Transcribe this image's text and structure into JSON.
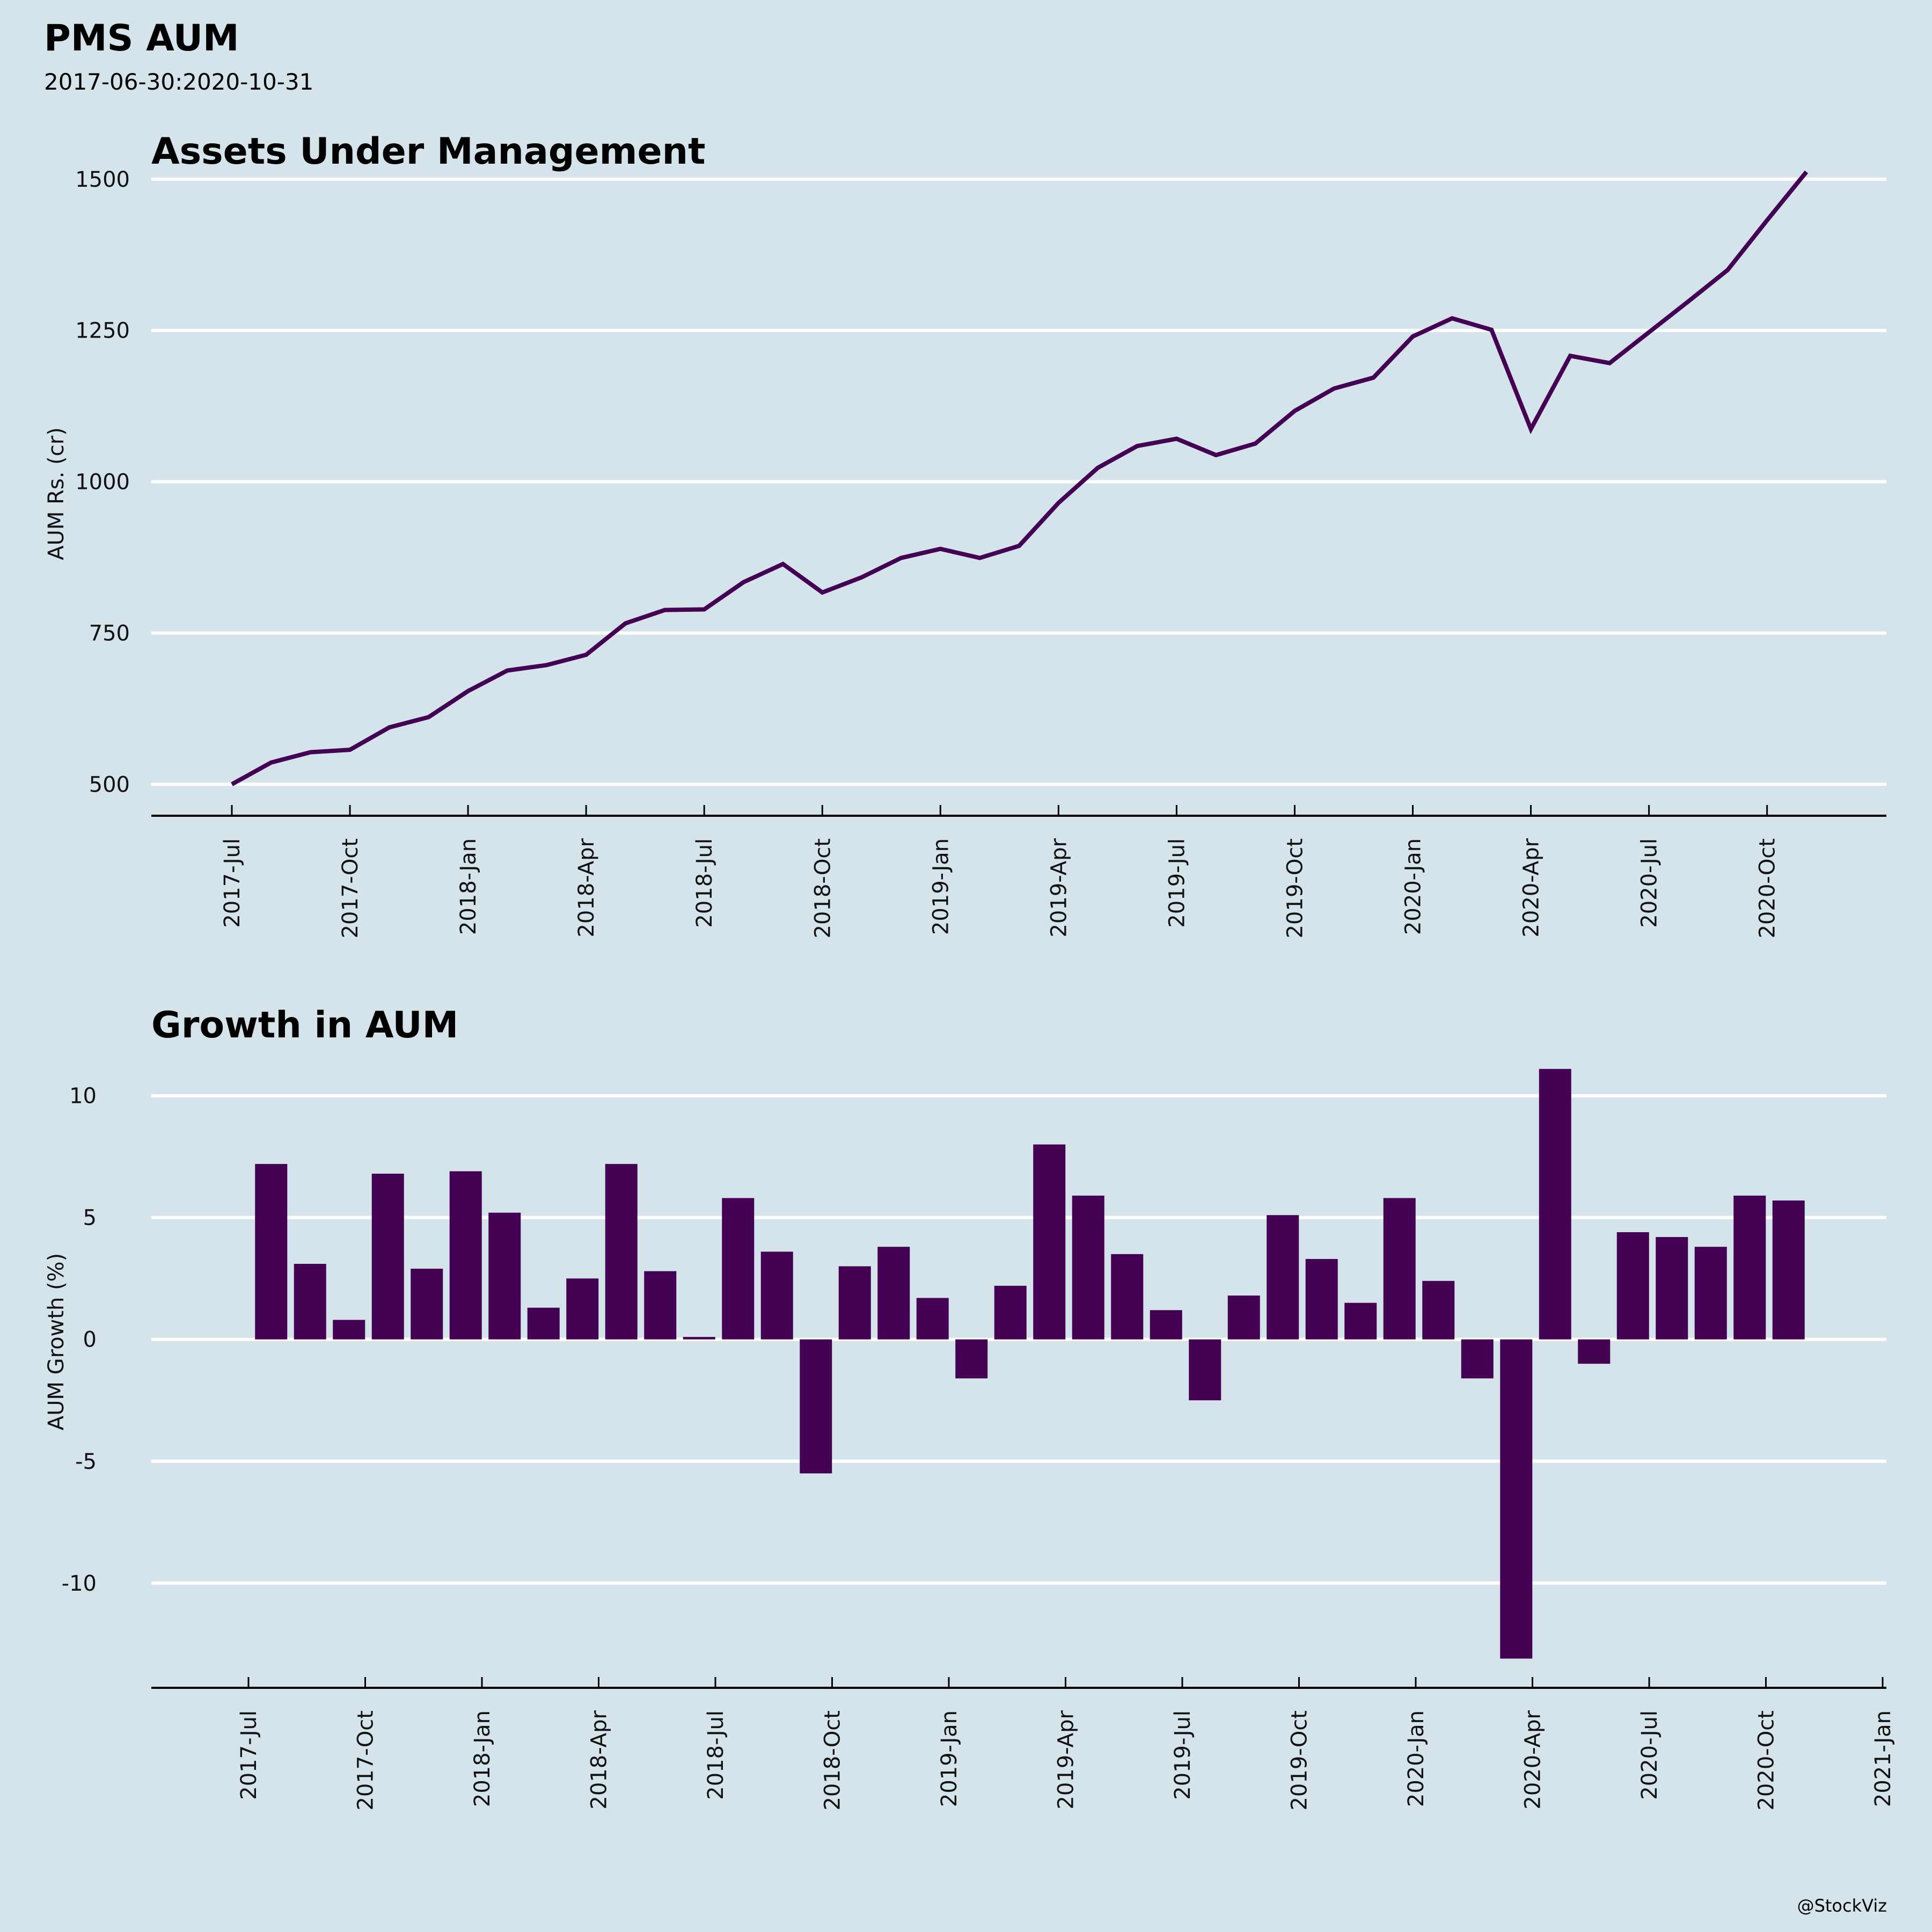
{
  "header": {
    "title": "PMS AUM",
    "subtitle": "2017-06-30:2020-10-31"
  },
  "footer": {
    "credit": "@StockViz"
  },
  "colors": {
    "background": "#d5e4eb",
    "series": "#440154",
    "grid": "#ffffff",
    "axis": "#000000"
  },
  "chart_data": [
    {
      "type": "line",
      "title": "Assets Under Management",
      "xlabel": "",
      "ylabel": "AUM Rs. (cr)",
      "ylim": [
        448,
        1530
      ],
      "yticks": [
        500,
        750,
        1000,
        1250,
        1500
      ],
      "grid": "horizontal",
      "legend": "none",
      "xtick_labels": [
        "2017-Jul",
        "2017-Oct",
        "2018-Jan",
        "2018-Apr",
        "2018-Jul",
        "2018-Oct",
        "2019-Jan",
        "2019-Apr",
        "2019-Jul",
        "2019-Oct",
        "2020-Jan",
        "2020-Apr",
        "2020-Jul",
        "2020-Oct"
      ],
      "x": [
        "2017-06",
        "2017-07",
        "2017-08",
        "2017-09",
        "2017-10",
        "2017-11",
        "2017-12",
        "2018-01",
        "2018-02",
        "2018-03",
        "2018-04",
        "2018-05",
        "2018-06",
        "2018-07",
        "2018-08",
        "2018-09",
        "2018-10",
        "2018-11",
        "2018-12",
        "2019-01",
        "2019-02",
        "2019-03",
        "2019-04",
        "2019-05",
        "2019-06",
        "2019-07",
        "2019-08",
        "2019-09",
        "2019-10",
        "2019-11",
        "2019-12",
        "2020-01",
        "2020-02",
        "2020-03",
        "2020-04",
        "2020-05",
        "2020-06",
        "2020-07",
        "2020-08",
        "2020-09",
        "2020-10"
      ],
      "values": [
        500,
        536,
        553,
        557,
        594,
        611,
        654,
        688,
        697,
        714,
        766,
        788,
        789,
        834,
        864,
        817,
        842,
        874,
        889,
        874,
        894,
        965,
        1023,
        1059,
        1071,
        1044,
        1063,
        1117,
        1154,
        1172,
        1240,
        1270,
        1251,
        1087,
        1208,
        1196,
        1247,
        1298,
        1350,
        1432,
        1512
      ]
    },
    {
      "type": "bar",
      "title": "Growth in AUM",
      "xlabel": "",
      "ylabel": "AUM Growth (%)",
      "ylim": [
        -14.3,
        11.8
      ],
      "yticks": [
        -10,
        -5,
        0,
        5,
        10
      ],
      "grid": "horizontal",
      "legend": "none",
      "xtick_labels": [
        "2017-Jul",
        "2017-Oct",
        "2018-Jan",
        "2018-Apr",
        "2018-Jul",
        "2018-Oct",
        "2019-Jan",
        "2019-Apr",
        "2019-Jul",
        "2019-Oct",
        "2020-Jan",
        "2020-Apr",
        "2020-Jul",
        "2020-Oct",
        "2021-Jan"
      ],
      "categories": [
        "2017-07",
        "2017-08",
        "2017-09",
        "2017-10",
        "2017-11",
        "2017-12",
        "2018-01",
        "2018-02",
        "2018-03",
        "2018-04",
        "2018-05",
        "2018-06",
        "2018-07",
        "2018-08",
        "2018-09",
        "2018-10",
        "2018-11",
        "2018-12",
        "2019-01",
        "2019-02",
        "2019-03",
        "2019-04",
        "2019-05",
        "2019-06",
        "2019-07",
        "2019-08",
        "2019-09",
        "2019-10",
        "2019-11",
        "2019-12",
        "2020-01",
        "2020-02",
        "2020-03",
        "2020-04",
        "2020-05",
        "2020-06",
        "2020-07",
        "2020-08",
        "2020-09",
        "2020-10"
      ],
      "values": [
        7.2,
        3.1,
        0.8,
        6.8,
        2.9,
        6.9,
        5.2,
        1.3,
        2.5,
        7.2,
        2.8,
        0.1,
        5.8,
        3.6,
        -5.5,
        3.0,
        3.8,
        1.7,
        -1.6,
        2.2,
        8.0,
        5.9,
        3.5,
        1.2,
        -2.5,
        1.8,
        5.1,
        3.3,
        1.5,
        5.8,
        2.4,
        -1.6,
        -13.1,
        11.1,
        -1.0,
        4.4,
        4.2,
        3.8,
        5.9,
        5.7
      ]
    }
  ]
}
